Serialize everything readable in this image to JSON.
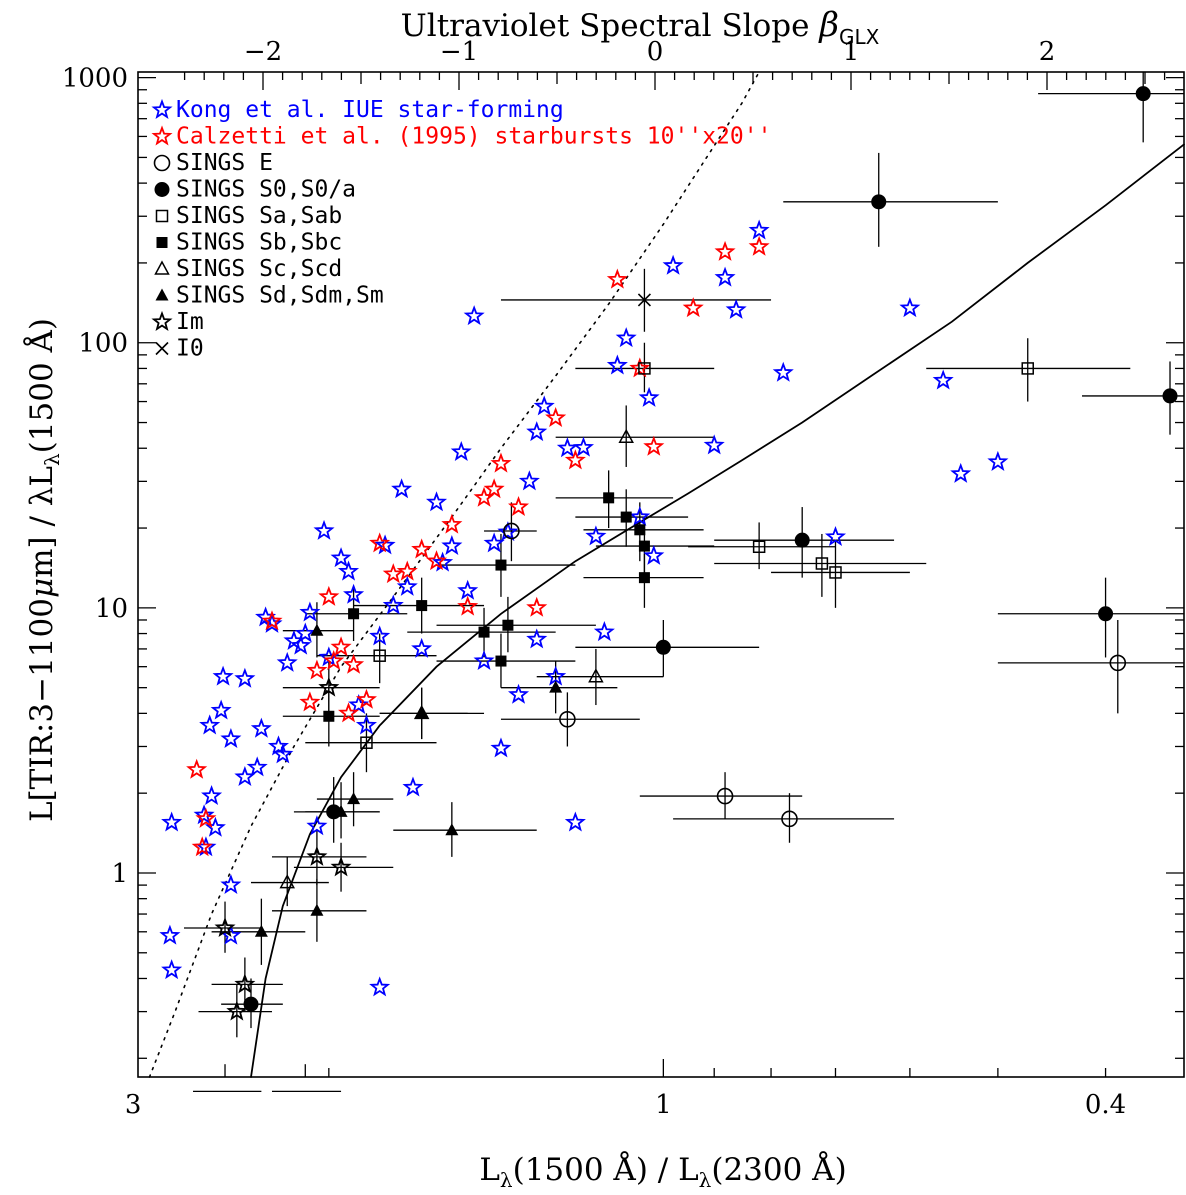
{
  "chart_data": {
    "type": "scatter",
    "title": "",
    "top_axis": {
      "label": "Ultraviolet Spectral Slope",
      "symbol": "β",
      "subscript": "GLX",
      "ticks": [
        -2,
        -1,
        0,
        1,
        2
      ],
      "tick_labels": [
        "−2",
        "−1",
        "0",
        "1",
        "2"
      ]
    },
    "xlabel": {
      "a": "L",
      "a_sub": "λ",
      "b": "(1500 Å) / L",
      "b_sub": "λ",
      "c": "(2300 Å)"
    },
    "ylabel": {
      "a": "L[TIR:3−1100",
      "mu": "μ",
      "b": "m] / λL",
      "sub": "λ",
      "c": "(1500 Å)"
    },
    "x_scale": "log, reversed",
    "y_scale": "log",
    "xlim": [
      2.97,
      0.34
    ],
    "ylim": [
      0.17,
      1050
    ],
    "x_ticks": [
      3,
      1,
      0.4
    ],
    "x_tick_labels": [
      "3",
      "1",
      "0.4"
    ],
    "y_ticks": [
      1,
      10,
      100,
      1000
    ],
    "y_tick_labels": [
      "1",
      "10",
      "100",
      "1000"
    ],
    "legend_position": "top-left",
    "legend": [
      {
        "key": "kong",
        "label": "Kong et al. IUE star-forming",
        "marker": "star-open",
        "color": "#0000ff"
      },
      {
        "key": "calzetti",
        "label": "Calzetti et al. (1995) starbursts 10''x20''",
        "marker": "star-open",
        "color": "#ff0000"
      },
      {
        "key": "e",
        "label": "SINGS E",
        "marker": "circle-open",
        "color": "#000000"
      },
      {
        "key": "s0",
        "label": "SINGS S0,S0/a",
        "marker": "circle-filled",
        "color": "#000000"
      },
      {
        "key": "sa",
        "label": "SINGS Sa,Sab",
        "marker": "square-open",
        "color": "#000000"
      },
      {
        "key": "sb",
        "label": "SINGS Sb,Sbc",
        "marker": "square-filled",
        "color": "#000000"
      },
      {
        "key": "sc",
        "label": "SINGS Sc,Scd",
        "marker": "triangle-open",
        "color": "#000000"
      },
      {
        "key": "sd",
        "label": "SINGS Sd,Sdm,Sm",
        "marker": "triangle-filled",
        "color": "#000000"
      },
      {
        "key": "im",
        "label": "Im",
        "marker": "star-open",
        "color": "#000000"
      },
      {
        "key": "i0",
        "label": "I0",
        "marker": "cross",
        "color": "#000000"
      }
    ],
    "curves": [
      {
        "style": "dotted",
        "points": [
          [
            2.9,
            0.17
          ],
          [
            2.75,
            0.3
          ],
          [
            2.55,
            0.7
          ],
          [
            2.35,
            1.5
          ],
          [
            2.15,
            3.0
          ],
          [
            1.95,
            6.0
          ],
          [
            1.75,
            11
          ],
          [
            1.55,
            22
          ],
          [
            1.4,
            40
          ],
          [
            1.25,
            75
          ],
          [
            1.12,
            140
          ],
          [
            1.0,
            280
          ],
          [
            0.92,
            480
          ],
          [
            0.85,
            800
          ],
          [
            0.82,
            1050
          ]
        ]
      },
      {
        "style": "solid",
        "points": [
          [
            2.35,
            0.17
          ],
          [
            2.28,
            0.4
          ],
          [
            2.2,
            0.75
          ],
          [
            2.08,
            1.4
          ],
          [
            1.95,
            2.3
          ],
          [
            1.8,
            3.6
          ],
          [
            1.6,
            6.0
          ],
          [
            1.4,
            9.5
          ],
          [
            1.2,
            15
          ],
          [
            1.05,
            21
          ],
          [
            0.95,
            27
          ],
          [
            0.85,
            36
          ],
          [
            0.75,
            50
          ],
          [
            0.65,
            75
          ],
          [
            0.55,
            120
          ],
          [
            0.47,
            200
          ],
          [
            0.4,
            330
          ],
          [
            0.34,
            560
          ]
        ]
      }
    ],
    "series": [
      {
        "name": "Kong et al. IUE star-forming",
        "key": "kong",
        "points": [
          [
            2.78,
            0.58
          ],
          [
            2.77,
            0.43
          ],
          [
            2.77,
            1.55
          ],
          [
            2.58,
            1.25
          ],
          [
            2.59,
            1.65
          ],
          [
            2.55,
            1.95
          ],
          [
            2.53,
            1.48
          ],
          [
            2.56,
            3.6
          ],
          [
            2.5,
            4.1
          ],
          [
            2.49,
            5.5
          ],
          [
            2.45,
            0.9
          ],
          [
            2.45,
            0.58
          ],
          [
            2.45,
            3.2
          ],
          [
            2.38,
            2.3
          ],
          [
            2.38,
            5.4
          ],
          [
            2.32,
            2.5
          ],
          [
            2.3,
            3.5
          ],
          [
            2.28,
            9.2
          ],
          [
            2.25,
            8.7
          ],
          [
            2.22,
            3.0
          ],
          [
            2.2,
            2.8
          ],
          [
            2.18,
            6.2
          ],
          [
            2.15,
            7.5
          ],
          [
            2.12,
            7.2
          ],
          [
            2.1,
            8.0
          ],
          [
            2.08,
            9.6
          ],
          [
            2.05,
            1.5
          ],
          [
            2.02,
            19.5
          ],
          [
            2.0,
            6.5
          ],
          [
            1.95,
            15.4
          ],
          [
            1.92,
            13.7
          ],
          [
            1.9,
            11.2
          ],
          [
            1.88,
            4.3
          ],
          [
            1.85,
            3.6
          ],
          [
            1.8,
            0.37
          ],
          [
            1.8,
            7.8
          ],
          [
            1.78,
            17.2
          ],
          [
            1.75,
            10.2
          ],
          [
            1.72,
            28.0
          ],
          [
            1.7,
            12.0
          ],
          [
            1.68,
            2.1
          ],
          [
            1.65,
            7.0
          ],
          [
            1.6,
            25.0
          ],
          [
            1.58,
            14.8
          ],
          [
            1.55,
            17.1
          ],
          [
            1.52,
            38.7
          ],
          [
            1.5,
            11.6
          ],
          [
            1.48,
            126
          ],
          [
            1.45,
            6.3
          ],
          [
            1.42,
            17.5
          ],
          [
            1.4,
            2.95
          ],
          [
            1.38,
            19.3
          ],
          [
            1.35,
            4.7
          ],
          [
            1.32,
            30.0
          ],
          [
            1.3,
            46.0
          ],
          [
            1.3,
            7.6
          ],
          [
            1.28,
            57.5
          ],
          [
            1.25,
            5.5
          ],
          [
            1.22,
            40.0
          ],
          [
            1.2,
            1.55
          ],
          [
            1.18,
            40.2
          ],
          [
            1.15,
            18.6
          ],
          [
            1.13,
            8.1
          ],
          [
            1.1,
            82
          ],
          [
            1.08,
            104
          ],
          [
            1.05,
            22.0
          ],
          [
            1.03,
            61.9
          ],
          [
            1.02,
            15.7
          ],
          [
            0.98,
            195
          ],
          [
            0.9,
            41.0
          ],
          [
            0.88,
            176
          ],
          [
            0.86,
            133
          ],
          [
            0.82,
            265
          ],
          [
            0.78,
            77
          ],
          [
            0.7,
            18.5
          ],
          [
            0.6,
            135
          ],
          [
            0.56,
            72
          ],
          [
            0.54,
            32
          ],
          [
            0.5,
            35.5
          ]
        ]
      },
      {
        "name": "Calzetti et al. (1995) starbursts 10''x20''",
        "key": "calzetti",
        "points": [
          [
            2.63,
            2.45
          ],
          [
            2.6,
            1.25
          ],
          [
            2.58,
            1.6
          ],
          [
            2.25,
            8.9
          ],
          [
            2.08,
            4.4
          ],
          [
            2.05,
            5.8
          ],
          [
            2.0,
            11.0
          ],
          [
            1.98,
            6.3
          ],
          [
            1.95,
            7.1
          ],
          [
            1.92,
            4.0
          ],
          [
            1.9,
            6.1
          ],
          [
            1.85,
            4.5
          ],
          [
            1.8,
            17.5
          ],
          [
            1.75,
            13.4
          ],
          [
            1.7,
            13.7
          ],
          [
            1.65,
            16.6
          ],
          [
            1.6,
            15.0
          ],
          [
            1.55,
            20.6
          ],
          [
            1.5,
            10.1
          ],
          [
            1.45,
            26.0
          ],
          [
            1.42,
            28.0
          ],
          [
            1.4,
            35.0
          ],
          [
            1.35,
            24.0
          ],
          [
            1.3,
            10.0
          ],
          [
            1.25,
            52.0
          ],
          [
            1.2,
            36.0
          ],
          [
            1.1,
            173
          ],
          [
            1.05,
            80
          ],
          [
            1.02,
            40.5
          ],
          [
            0.94,
            135
          ],
          [
            0.88,
            220
          ],
          [
            0.82,
            230
          ]
        ]
      },
      {
        "name": "SINGS E",
        "key": "e",
        "points": [
          [
            1.37,
            19.5,
            1.3,
            1.45,
            15,
            25
          ],
          [
            1.22,
            3.8,
            1.05,
            1.4,
            3.0,
            4.8
          ],
          [
            0.88,
            1.95,
            0.75,
            1.05,
            1.6,
            2.4
          ],
          [
            0.77,
            1.6,
            0.62,
            0.98,
            1.3,
            2.0
          ],
          [
            0.39,
            6.2,
            0.3,
            0.5,
            4.0,
            9.0
          ]
        ]
      },
      {
        "name": "SINGS S0,S0/a",
        "key": "s0",
        "points": [
          [
            2.35,
            0.32,
            2.5,
            2.2,
            0.26,
            0.4
          ],
          [
            1.98,
            1.7,
            2.15,
            1.8,
            1.3,
            2.3
          ],
          [
            1.0,
            7.1,
            0.82,
            1.2,
            5.5,
            9.0
          ],
          [
            0.75,
            18,
            0.62,
            0.9,
            13,
            24
          ],
          [
            0.64,
            340,
            0.5,
            0.78,
            230,
            520
          ],
          [
            0.4,
            9.5,
            0.32,
            0.5,
            6.5,
            13
          ],
          [
            0.37,
            870,
            0.28,
            0.46,
            570,
            1200
          ],
          [
            0.35,
            63,
            0.3,
            0.42,
            45,
            85
          ]
        ]
      },
      {
        "name": "SINGS Sa,Sab",
        "key": "sa",
        "points": [
          [
            1.85,
            3.1,
            2.1,
            1.6,
            2.4,
            4.0
          ],
          [
            1.8,
            6.6,
            2.05,
            1.6,
            5.2,
            8.0
          ],
          [
            0.82,
            17,
            0.7,
            0.95,
            14,
            21
          ],
          [
            0.72,
            14.7,
            0.58,
            0.9,
            11,
            19
          ],
          [
            0.7,
            13.6,
            0.6,
            0.8,
            10,
            18
          ],
          [
            0.47,
            80,
            0.38,
            0.58,
            60,
            104
          ],
          [
            1.04,
            80,
            1.2,
            0.9,
            65,
            100
          ]
        ]
      },
      {
        "name": "SINGS Sb,Sbc",
        "key": "sb",
        "points": [
          [
            2.0,
            3.9,
            2.2,
            1.8,
            3.0,
            5.0
          ],
          [
            1.9,
            9.5,
            2.1,
            1.7,
            7.5,
            12
          ],
          [
            1.65,
            10.2,
            1.9,
            1.45,
            8.0,
            13
          ],
          [
            1.4,
            14.5,
            1.6,
            1.2,
            11,
            19
          ],
          [
            1.38,
            8.6,
            1.6,
            1.15,
            6.8,
            11
          ],
          [
            1.4,
            6.3,
            1.6,
            1.2,
            5.0,
            8.0
          ],
          [
            1.45,
            8.1,
            1.7,
            1.25,
            6.5,
            10
          ],
          [
            1.12,
            26,
            1.25,
            0.98,
            20,
            33
          ],
          [
            1.08,
            22,
            1.2,
            0.95,
            17,
            28
          ],
          [
            1.05,
            19.7,
            1.18,
            0.92,
            15,
            25
          ],
          [
            1.04,
            17.1,
            1.15,
            0.9,
            13,
            22
          ],
          [
            1.04,
            13,
            1.18,
            0.92,
            10,
            16
          ]
        ]
      },
      {
        "name": "SINGS Sc,Scd",
        "key": "sc",
        "points": [
          [
            2.18,
            0.92,
            2.35,
            2.0,
            0.75,
            1.15
          ],
          [
            1.65,
            4.0,
            1.8,
            1.45,
            3.2,
            5.0
          ],
          [
            1.15,
            5.5,
            1.3,
            1.0,
            4.3,
            7.0
          ],
          [
            1.08,
            44,
            1.25,
            0.9,
            34,
            58
          ]
        ]
      },
      {
        "name": "SINGS Sd,Sdm,Sm",
        "key": "sd",
        "points": [
          [
            2.3,
            0.6,
            2.55,
            2.1,
            0.45,
            0.8
          ],
          [
            2.05,
            0.72,
            2.25,
            1.85,
            0.55,
            0.95
          ],
          [
            2.05,
            8.2,
            2.2,
            1.9,
            6.5,
            10.5
          ],
          [
            1.95,
            1.7,
            2.1,
            1.8,
            1.35,
            2.2
          ],
          [
            1.9,
            1.9,
            2.05,
            1.75,
            1.5,
            2.4
          ],
          [
            1.65,
            4.0,
            1.8,
            1.5,
            3.2,
            5.0
          ],
          [
            1.55,
            1.45,
            1.75,
            1.3,
            1.15,
            1.85
          ],
          [
            1.25,
            5.0,
            1.4,
            1.1,
            4.0,
            6.3
          ]
        ]
      },
      {
        "name": "Im",
        "key": "im",
        "points": [
          [
            2.48,
            0.62,
            2.7,
            2.3,
            0.5,
            0.78
          ],
          [
            2.48,
            0.15,
            2.65,
            2.3,
            0.12,
            0.19
          ],
          [
            2.42,
            0.3,
            2.62,
            2.25,
            0.24,
            0.38
          ],
          [
            2.38,
            0.38,
            2.55,
            2.2,
            0.3,
            0.48
          ],
          [
            2.1,
            0.15,
            2.25,
            1.95,
            0.12,
            0.19
          ],
          [
            2.05,
            1.15,
            2.25,
            1.85,
            0.9,
            1.45
          ],
          [
            2.0,
            5.0,
            2.2,
            1.8,
            4.0,
            6.3
          ],
          [
            1.95,
            1.05,
            2.15,
            1.75,
            0.85,
            1.3
          ]
        ]
      },
      {
        "name": "I0",
        "key": "i0",
        "points": [
          [
            1.04,
            145,
            1.4,
            0.8,
            110,
            190
          ]
        ]
      }
    ]
  }
}
